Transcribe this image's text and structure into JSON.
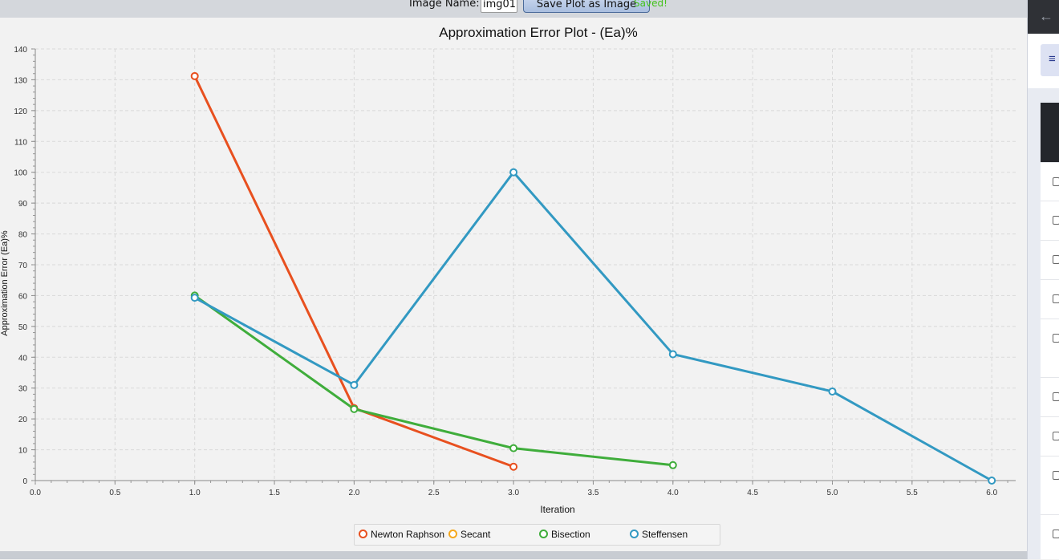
{
  "toolbar": {
    "image_name_label": "Image Name:",
    "image_name_value": "img01",
    "save_button_label": "Save Plot as Image",
    "status_text": "Saved!"
  },
  "chart_data": {
    "type": "line",
    "title": "Approximation Error Plot - (Ea)%",
    "xlabel": "Iteration",
    "ylabel": "Approximation Error (Ea)%",
    "xlim": [
      0,
      6.15
    ],
    "ylim": [
      0,
      140
    ],
    "x_ticks": [
      "0.0",
      "0.5",
      "1.0",
      "1.5",
      "2.0",
      "2.5",
      "3.0",
      "3.5",
      "4.0",
      "4.5",
      "5.0",
      "5.5",
      "6.0"
    ],
    "y_ticks": [
      "0",
      "10",
      "20",
      "30",
      "40",
      "50",
      "60",
      "70",
      "80",
      "90",
      "100",
      "110",
      "120",
      "130",
      "140"
    ],
    "grid": true,
    "legend_position": "bottom",
    "series": [
      {
        "name": "Newton Raphson",
        "color": "#e8501f",
        "x": [
          1,
          2,
          3
        ],
        "y": [
          131.2,
          23.5,
          4.5
        ]
      },
      {
        "name": "Secant",
        "color": "#f5a81d",
        "x": [],
        "y": []
      },
      {
        "name": "Bisection",
        "color": "#3fad3b",
        "x": [
          1,
          2,
          3,
          4
        ],
        "y": [
          60,
          23.2,
          10.5,
          5
        ]
      },
      {
        "name": "Steffensen",
        "color": "#3299c2",
        "x": [
          1,
          2,
          3,
          4,
          5,
          6
        ],
        "y": [
          59.3,
          31,
          100,
          41,
          28.9,
          0
        ]
      }
    ]
  },
  "side_panel": {
    "back_icon": "arrow-left-icon",
    "menu_icon": "hamburger-icon"
  }
}
